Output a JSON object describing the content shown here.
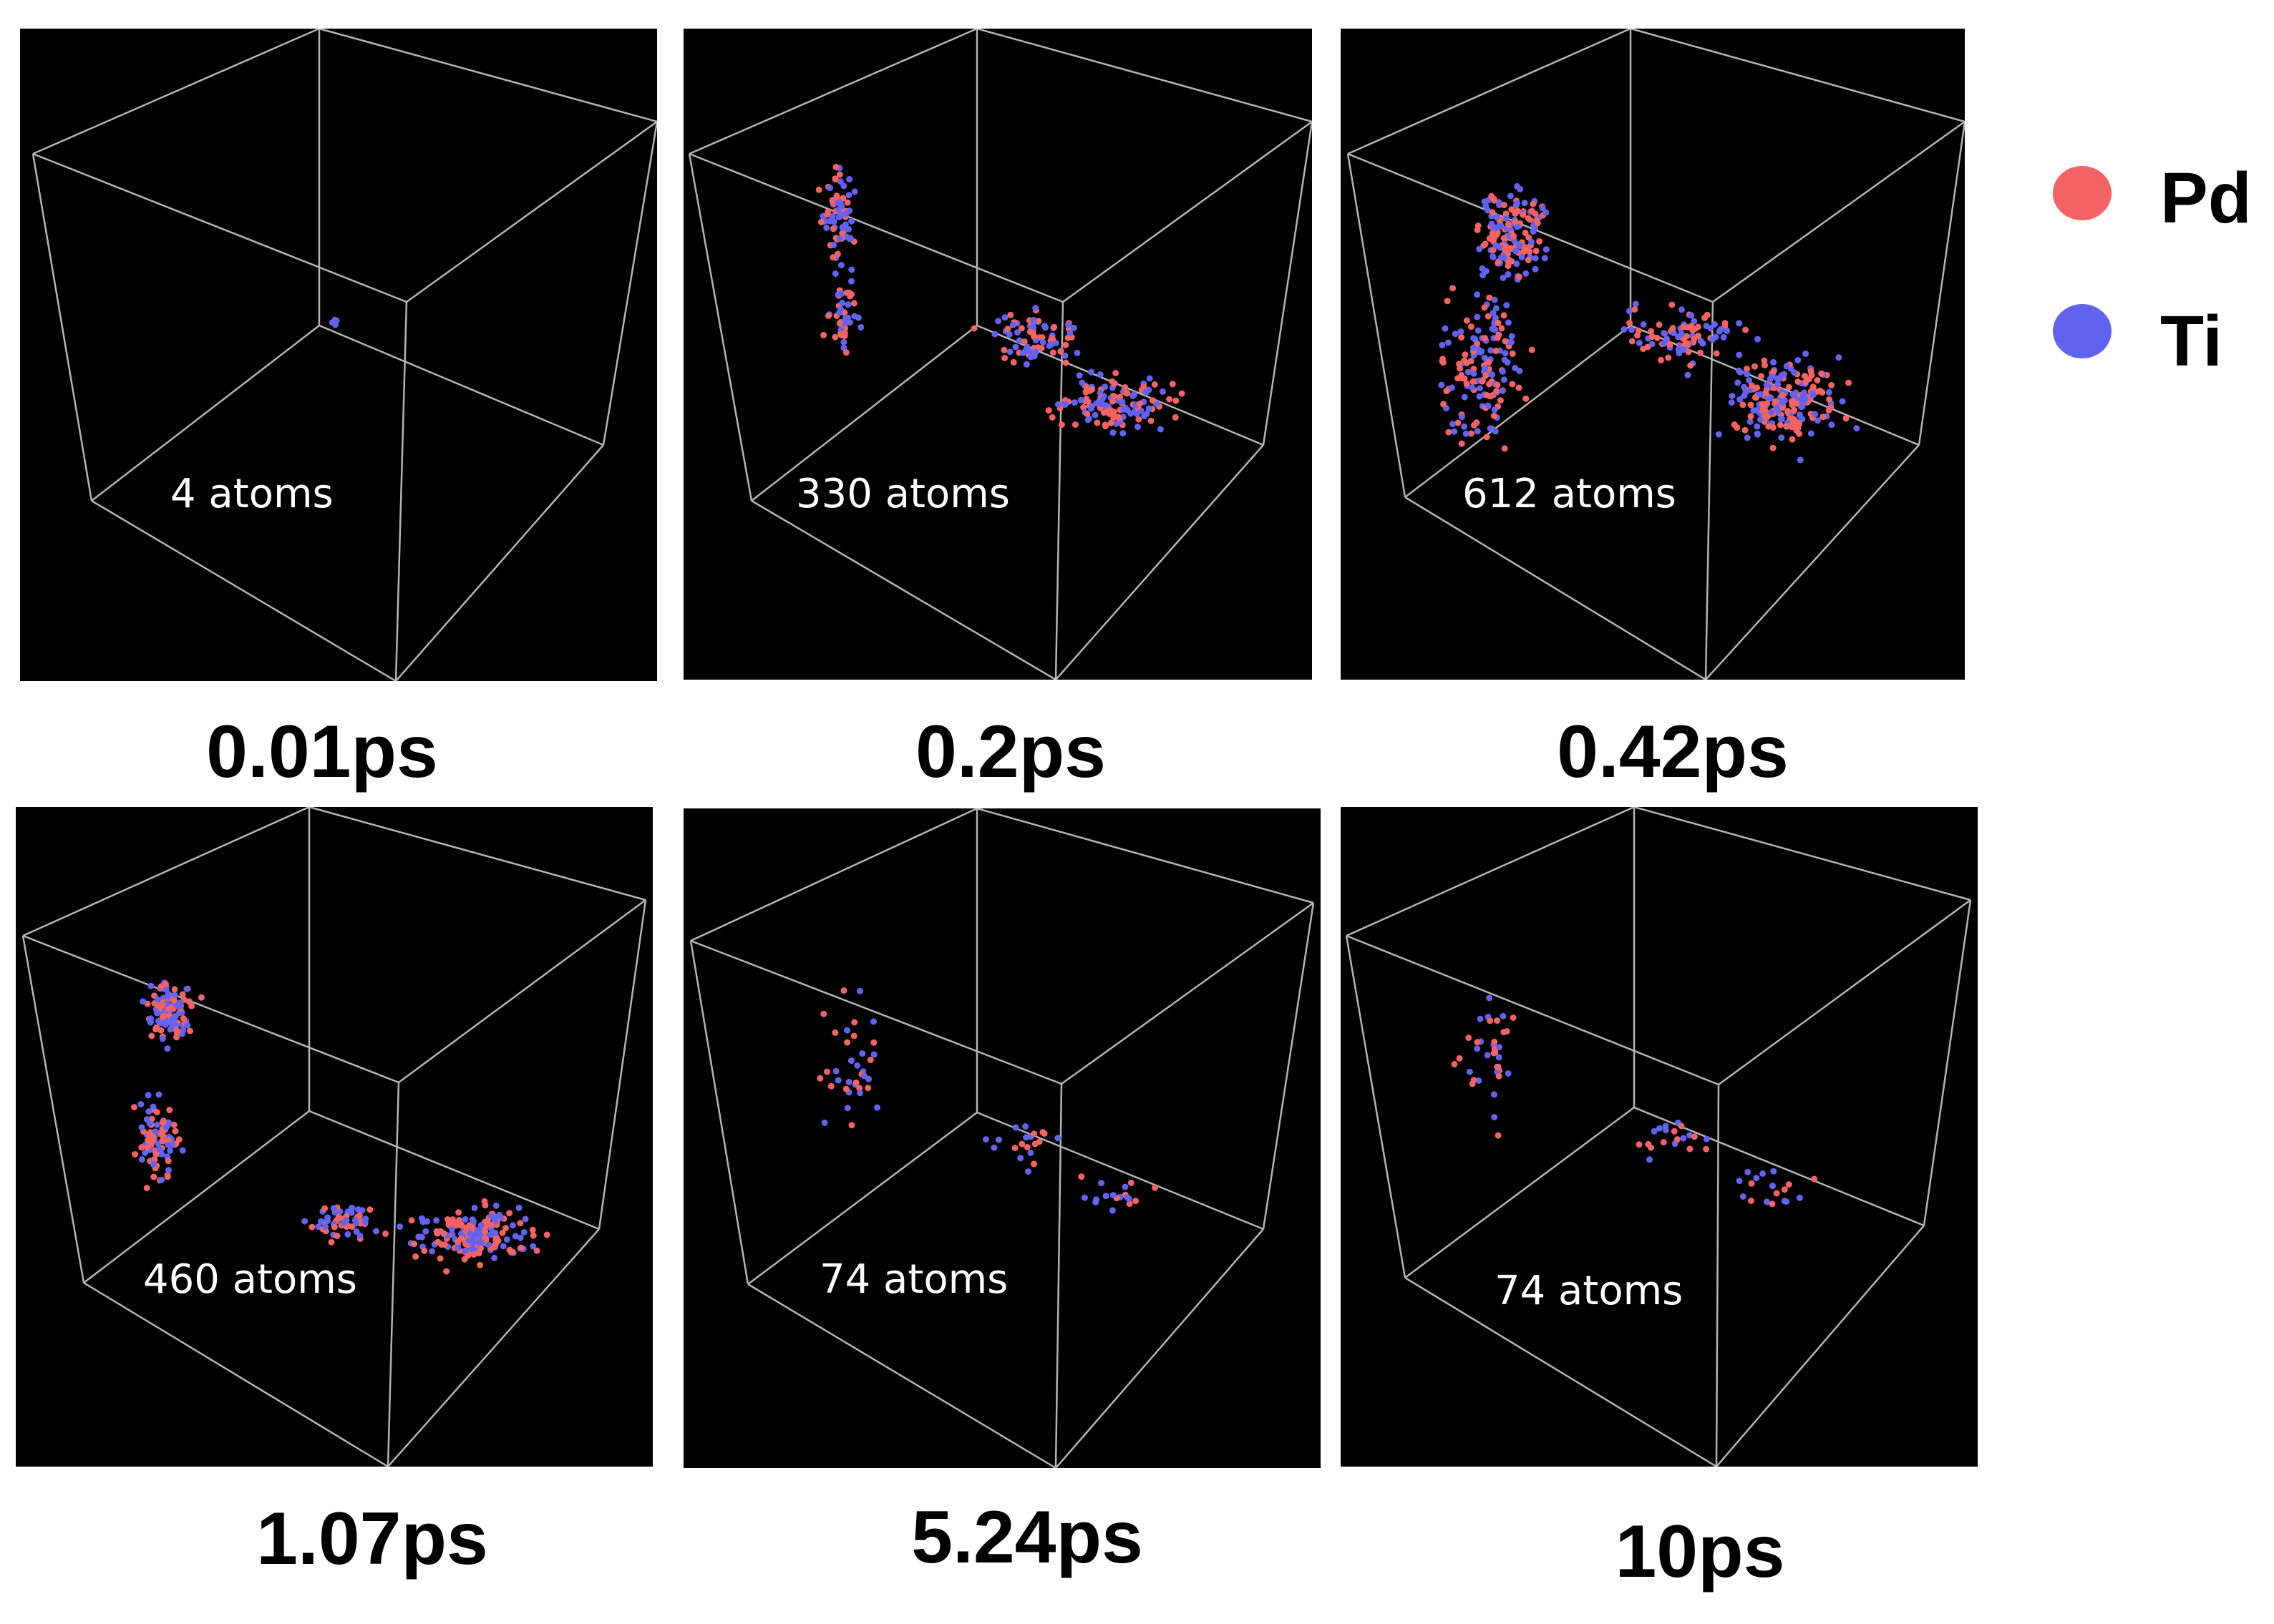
{
  "legend": [
    {
      "label": "Pd",
      "color": "#f36363"
    },
    {
      "label": "Ti",
      "color": "#6262f0"
    }
  ],
  "panels": [
    {
      "time": "0.01ps",
      "count": "4 atoms"
    },
    {
      "time": "0.2ps",
      "count": "330 atoms"
    },
    {
      "time": "0.42ps",
      "count": "612 atoms"
    },
    {
      "time": "1.07ps",
      "count": "460 atoms"
    },
    {
      "time": "5.24ps",
      "count": "74 atoms"
    },
    {
      "time": "10ps",
      "count": "74 atoms"
    }
  ],
  "colors": {
    "background": "#000000",
    "edges": "#b4b4b4",
    "pd": "#f36363",
    "ti": "#6262f0"
  }
}
